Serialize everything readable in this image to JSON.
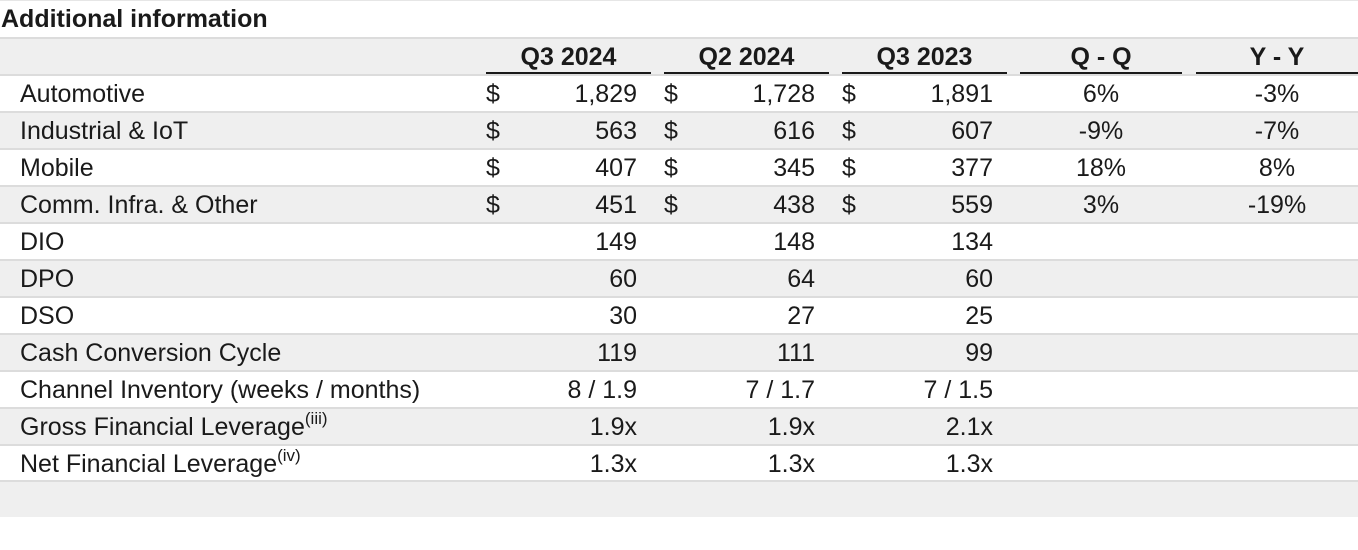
{
  "title": "Additional information",
  "headers": {
    "q3_2024": "Q3 2024",
    "q2_2024": "Q2 2024",
    "q3_2023": "Q3 2023",
    "qq": "Q - Q",
    "yy": "Y - Y"
  },
  "currency_symbol": "$",
  "segments": [
    {
      "label": "Automotive",
      "q3_2024": "1,829",
      "q2_2024": "1,728",
      "q3_2023": "1,891",
      "qq": "6%",
      "yy": "-3%"
    },
    {
      "label": "Industrial & IoT",
      "q3_2024": "563",
      "q2_2024": "616",
      "q3_2023": "607",
      "qq": "-9%",
      "yy": "-7%"
    },
    {
      "label": "Mobile",
      "q3_2024": "407",
      "q2_2024": "345",
      "q3_2023": "377",
      "qq": "18%",
      "yy": "8%"
    },
    {
      "label": "Comm. Infra. & Other",
      "q3_2024": "451",
      "q2_2024": "438",
      "q3_2023": "559",
      "qq": "3%",
      "yy": "-19%"
    }
  ],
  "metrics": [
    {
      "label": "DIO",
      "q3_2024": "149",
      "q2_2024": "148",
      "q3_2023": "134"
    },
    {
      "label": "DPO",
      "q3_2024": "60",
      "q2_2024": "64",
      "q3_2023": "60"
    },
    {
      "label": "DSO",
      "q3_2024": "30",
      "q2_2024": "27",
      "q3_2023": "25"
    },
    {
      "label": "Cash Conversion Cycle",
      "q3_2024": "119",
      "q2_2024": "111",
      "q3_2023": "99"
    },
    {
      "label": "Channel Inventory (weeks / months)",
      "q3_2024": "8 / 1.9",
      "q2_2024": "7 / 1.7",
      "q3_2023": "7 / 1.5"
    },
    {
      "label": "Gross Financial Leverage",
      "sup": "(iii)",
      "q3_2024": "1.9x",
      "q2_2024": "1.9x",
      "q3_2023": "2.1x"
    },
    {
      "label": "Net Financial Leverage",
      "sup": "(iv)",
      "q3_2024": "1.3x",
      "q2_2024": "1.3x",
      "q3_2023": "1.3x"
    }
  ]
}
